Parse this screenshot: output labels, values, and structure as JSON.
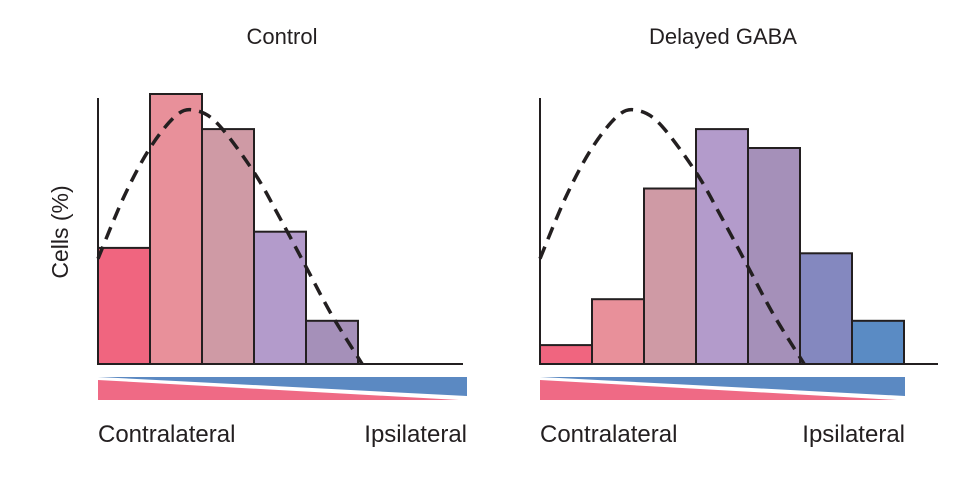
{
  "chart_data": [
    {
      "type": "bar",
      "title": "Control",
      "ylabel": "Cells (%)",
      "xlabel_left": "Contralateral",
      "xlabel_right": "Ipsilateral",
      "ylim": [
        0,
        100
      ],
      "bins": 7,
      "values": [
        43,
        100,
        87,
        49,
        16,
        0,
        0
      ],
      "bar_colors": [
        "#f0657f",
        "#e8909a",
        "#cf9aa5",
        "#b39bcb",
        "#a590b9",
        "#8488bf",
        "#5a8bc4"
      ],
      "reference_curve": [
        [
          0,
          39
        ],
        [
          0.5,
          62
        ],
        [
          1,
          80
        ],
        [
          1.5,
          92
        ],
        [
          1.85,
          94
        ],
        [
          2.3,
          89
        ],
        [
          3,
          71
        ],
        [
          3.5,
          54
        ],
        [
          4,
          36
        ],
        [
          4.5,
          18
        ],
        [
          5.08,
          0
        ]
      ]
    },
    {
      "type": "bar",
      "title": "Delayed GABA",
      "xlabel_left": "Contralateral",
      "xlabel_right": "Ipsilateral",
      "ylim": [
        0,
        100
      ],
      "bins": 7,
      "values": [
        7,
        24,
        65,
        87,
        80,
        41,
        16
      ],
      "bar_colors": [
        "#f0657f",
        "#e8909a",
        "#cf9aa5",
        "#b39bcb",
        "#a590b9",
        "#8488bf",
        "#5a8bc4"
      ],
      "reference_curve": [
        [
          0,
          39
        ],
        [
          0.5,
          62
        ],
        [
          1,
          80
        ],
        [
          1.5,
          92
        ],
        [
          1.85,
          94
        ],
        [
          2.3,
          89
        ],
        [
          3,
          71
        ],
        [
          3.5,
          54
        ],
        [
          4,
          36
        ],
        [
          4.5,
          18
        ],
        [
          5.08,
          0
        ]
      ]
    }
  ],
  "colors": {
    "contra": "#ef6a85",
    "ipsi": "#5b89c2",
    "axis": "#231f20"
  }
}
